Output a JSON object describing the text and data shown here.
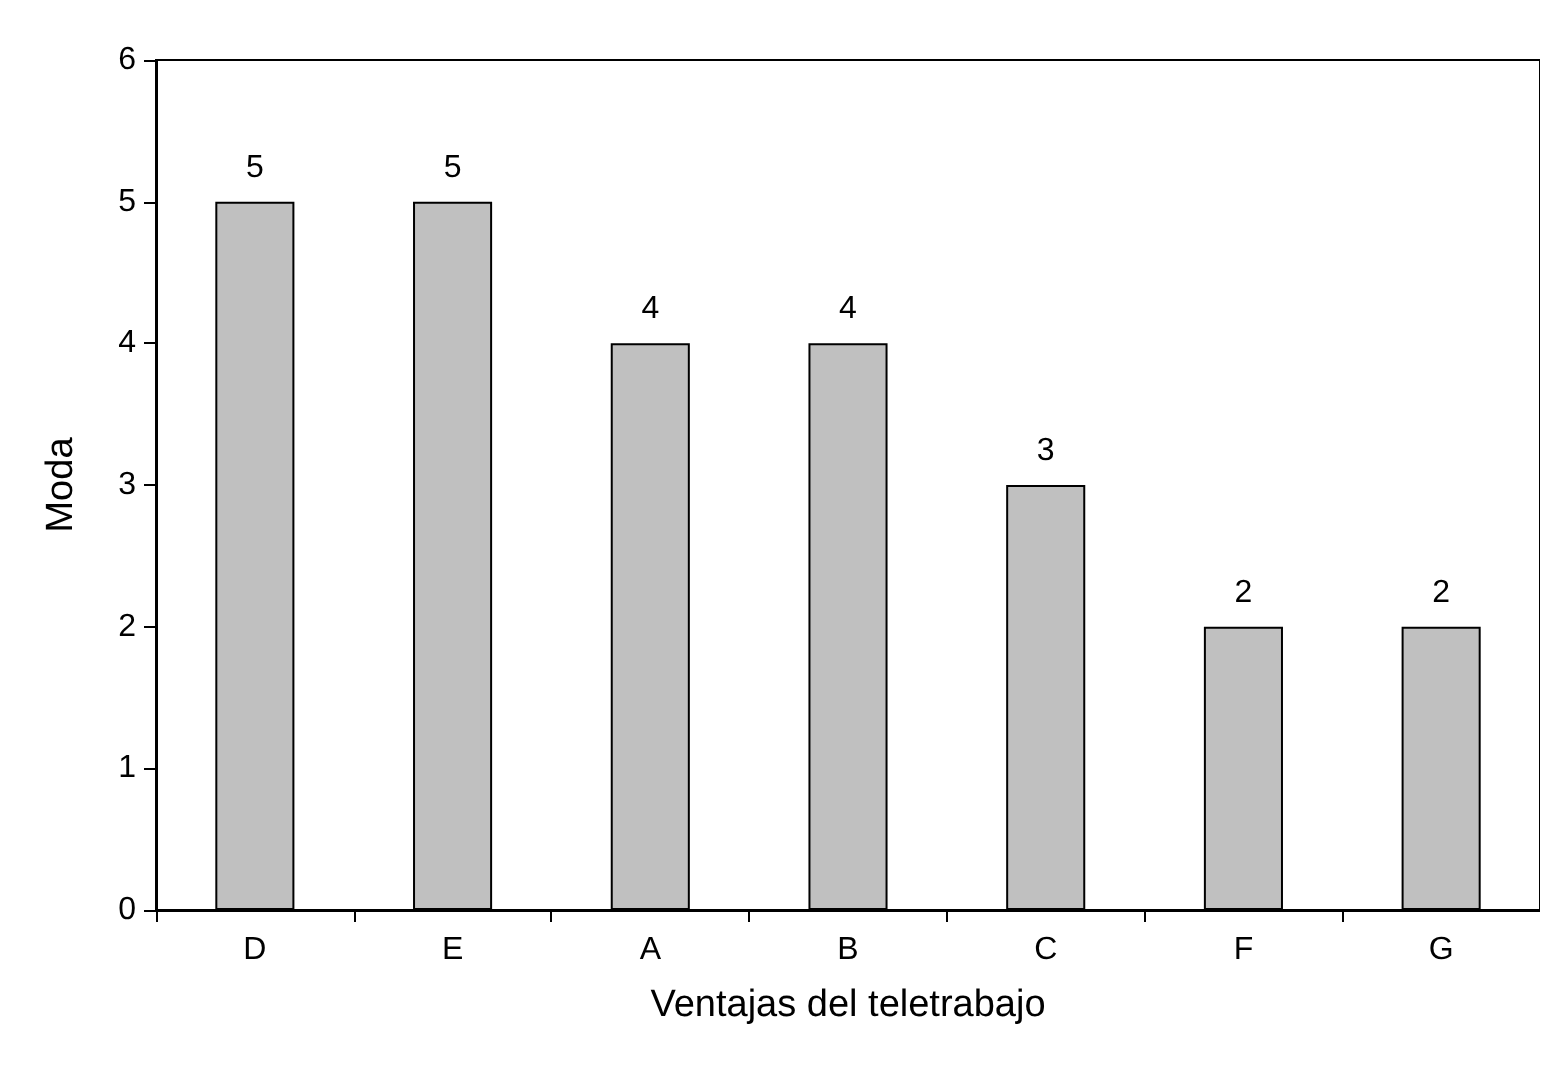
{
  "chart_data": {
    "type": "bar",
    "xlabel": "Ventajas del teletrabajo",
    "ylabel": "Moda",
    "categories": [
      "D",
      "E",
      "A",
      "B",
      "C",
      "F",
      "G"
    ],
    "values": [
      5,
      5,
      4,
      4,
      3,
      2,
      2
    ],
    "color": "#c0c0c0",
    "ylim": [
      0,
      6
    ],
    "yticks": [
      0,
      1,
      2,
      3,
      4,
      5,
      6
    ],
    "grid": false,
    "data_labels": true
  }
}
